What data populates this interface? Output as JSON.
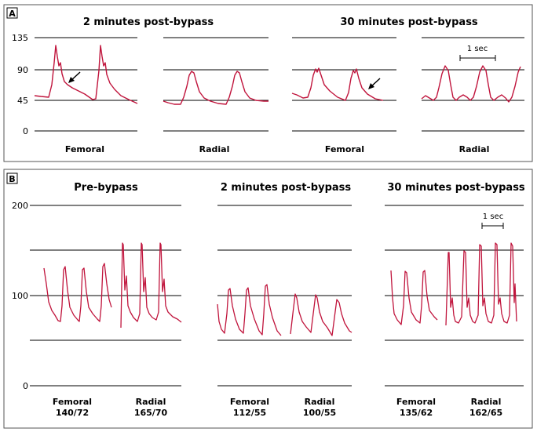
{
  "panel_a": {
    "label": "A",
    "title_left": "2 minutes post-bypass",
    "title_right": "30 minutes post-bypass",
    "y_ticks": [
      "135",
      "90",
      "45",
      "0"
    ],
    "scale_label": "1 sec",
    "traces": [
      {
        "label": "Femoral"
      },
      {
        "label": "Radial"
      },
      {
        "label": "Femoral"
      },
      {
        "label": "Radial"
      }
    ]
  },
  "panel_b": {
    "label": "B",
    "groups": [
      {
        "title": "Pre-bypass",
        "traces": [
          {
            "label": "Femoral",
            "value": "140/72"
          },
          {
            "label": "Radial",
            "value": "165/70"
          }
        ]
      },
      {
        "title": "2 minutes post-bypass",
        "traces": [
          {
            "label": "Femoral",
            "value": "112/55"
          },
          {
            "label": "Radial",
            "value": "100/55"
          }
        ]
      },
      {
        "title": "30 minutes post-bypass",
        "traces": [
          {
            "label": "Femoral",
            "value": "135/62"
          },
          {
            "label": "Radial",
            "value": "162/65"
          }
        ]
      }
    ],
    "y_ticks": [
      "200",
      "100",
      "0"
    ],
    "scale_label": "1 sec"
  },
  "colors": {
    "trace": "#c0143c",
    "line": "#000000",
    "border": "#555555"
  }
}
